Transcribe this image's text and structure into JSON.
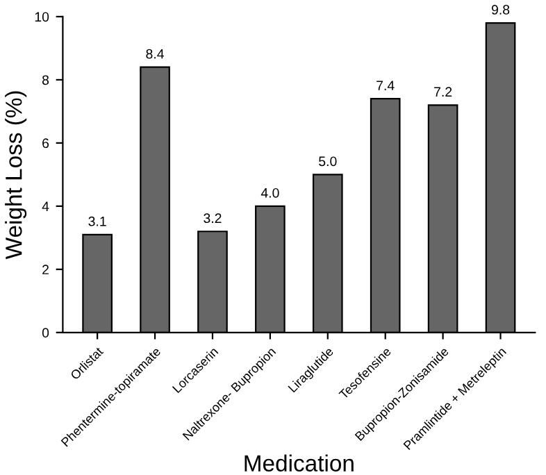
{
  "chart_data": {
    "type": "bar",
    "xlabel": "Medication",
    "ylabel": "Weight Loss (%)",
    "categories": [
      "Orlistat",
      "Phentermine-topiramate",
      "Lorcaserin",
      "Naltrexone- Bupropion",
      "Liraglutide",
      "Tesofensine",
      "Bupropion-Zonisamide",
      "Pramlintide + Metreleptin"
    ],
    "values": [
      3.1,
      8.4,
      3.2,
      4.0,
      5.0,
      7.4,
      7.2,
      9.8
    ],
    "value_labels": [
      "3.1",
      "8.4",
      "3.2",
      "4.0",
      "5.0",
      "7.4",
      "7.2",
      "9.8"
    ],
    "color": "#666666",
    "ylim": [
      0,
      10
    ],
    "yticks": [
      0,
      2,
      4,
      6,
      8,
      10
    ],
    "grid": false
  }
}
